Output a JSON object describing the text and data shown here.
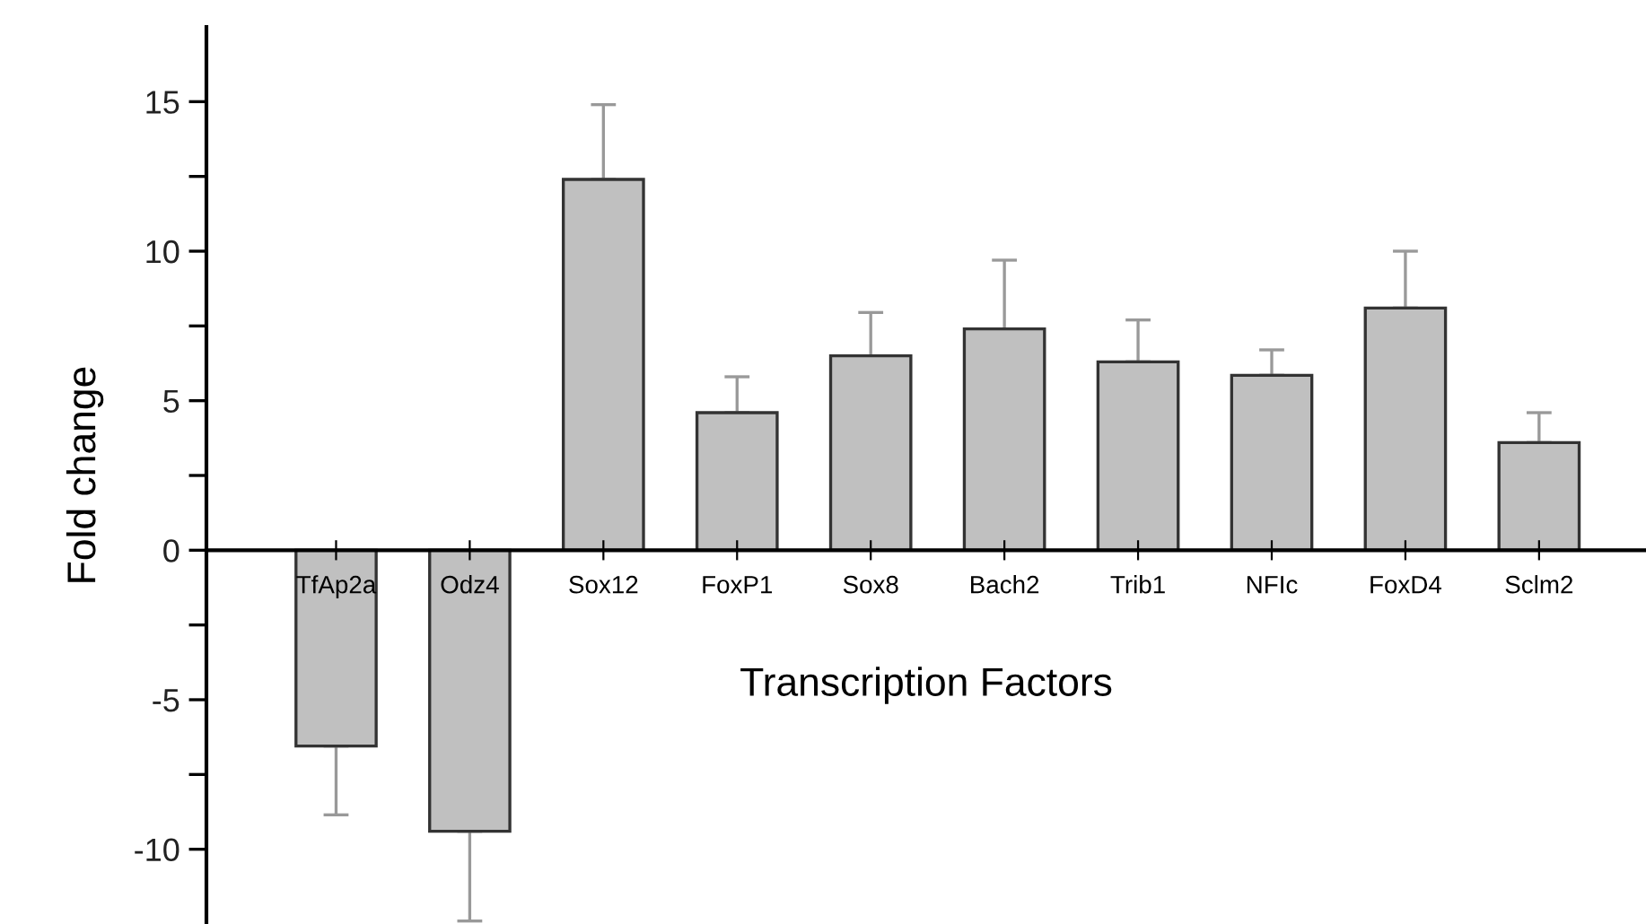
{
  "chart_data": {
    "type": "bar",
    "xlabel": "Transcription Factors",
    "ylabel": "Fold change",
    "categories": [
      "TfAp2a",
      "Odz4",
      "Sox12",
      "FoxP1",
      "Sox8",
      "Bach2",
      "Trib1",
      "NFIc",
      "FoxD4",
      "Sclm2"
    ],
    "values": [
      -6.55,
      -9.4,
      12.4,
      4.6,
      6.5,
      7.4,
      6.3,
      5.85,
      8.1,
      3.6
    ],
    "errors": [
      [
        -8.85,
        -6.55
      ],
      [
        -12.4,
        -9.4
      ],
      [
        12.4,
        14.9
      ],
      [
        4.6,
        5.8
      ],
      [
        6.5,
        7.95
      ],
      [
        7.4,
        9.7
      ],
      [
        6.3,
        7.7
      ],
      [
        5.85,
        6.7
      ],
      [
        8.1,
        10.0
      ],
      [
        3.6,
        4.6
      ]
    ],
    "color": "#c0c0c0",
    "ylim": [
      -12.5,
      17.5
    ],
    "yticks": [
      -10,
      {
        "value": -7.5,
        "label": null
      },
      -5,
      {
        "value": -2.5,
        "label": null
      },
      0,
      {
        "value": 2.5,
        "label": null
      },
      5,
      {
        "value": 7.5,
        "label": null
      },
      10,
      {
        "value": 12.5,
        "label": null
      },
      15
    ],
    "grid": false,
    "legend": false
  }
}
